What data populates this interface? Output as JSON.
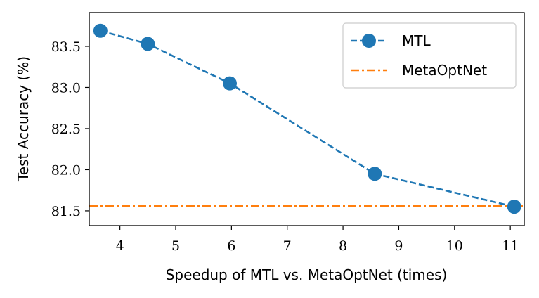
{
  "chart_data": {
    "type": "line",
    "xlabel": "Speedup of MTL vs. MetaOptNet (times)",
    "ylabel": "Test Accuracy (%)",
    "xlim": [
      3.45,
      11.25
    ],
    "ylim": [
      81.32,
      83.91
    ],
    "xticks": [
      4,
      5,
      6,
      7,
      8,
      9,
      10,
      11
    ],
    "xtick_labels": [
      "4",
      "5",
      "6",
      "7",
      "8",
      "9",
      "10",
      "11"
    ],
    "yticks": [
      81.5,
      82.0,
      82.5,
      83.0,
      83.5
    ],
    "ytick_labels": [
      "81.5",
      "82.0",
      "82.5",
      "83.0",
      "83.5"
    ],
    "grid": false,
    "legend": "top-right",
    "series": [
      {
        "name": "MTL",
        "style": "dashed-with-markers",
        "color": "#1f77b4",
        "x": [
          3.65,
          4.5,
          5.97,
          8.57,
          11.07
        ],
        "y": [
          83.69,
          83.53,
          83.05,
          81.95,
          81.55
        ]
      },
      {
        "name": "MetaOptNet",
        "style": "dash-dot-horizontal",
        "color": "#ff7f0e",
        "x": [
          3.45,
          11.25
        ],
        "y": [
          81.56,
          81.56
        ]
      }
    ]
  }
}
